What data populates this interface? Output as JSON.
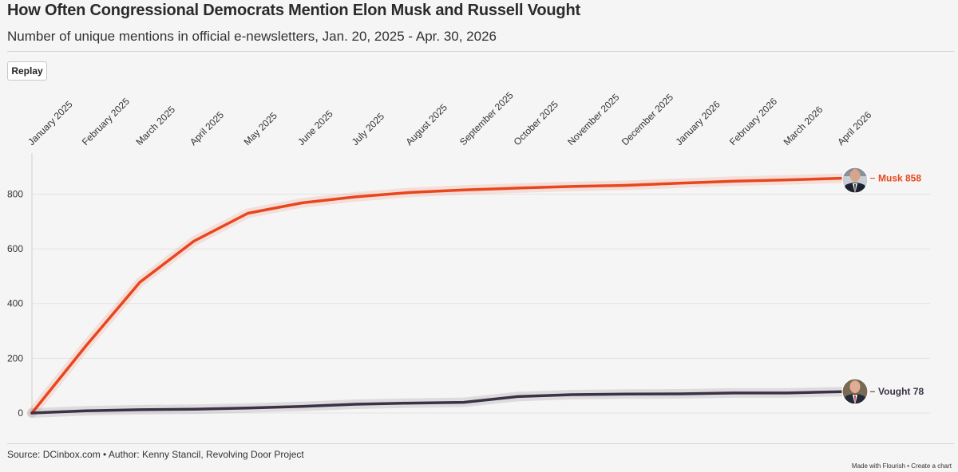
{
  "header": {
    "title": "How Often Congressional Democrats Mention Elon Musk and Russell Vought",
    "subtitle": "Number of unique mentions in official e-newsletters, Jan. 20, 2025 - Apr. 30, 2026"
  },
  "controls": {
    "replay_label": "Replay"
  },
  "footer": {
    "source": "Source: DCinbox.com • Author: Kenny Stancil, Revolving Door Project",
    "made_with": "Made with Flourish",
    "separator": " • ",
    "create_chart": "Create a chart"
  },
  "chart_data": {
    "type": "line",
    "title": "How Often Congressional Democrats Mention Elon Musk and Russell Vought",
    "subtitle": "Number of unique mentions in official e-newsletters, Jan. 20, 2025 - Apr. 30, 2026",
    "xlabel": "",
    "ylabel": "",
    "x": [
      "January 2025",
      "February 2025",
      "March 2025",
      "April 2025",
      "May 2025",
      "June 2025",
      "July 2025",
      "August 2025",
      "September 2025",
      "October 2025",
      "November 2025",
      "December 2025",
      "January 2026",
      "February 2026",
      "March 2026",
      "April 2026"
    ],
    "x_axis_position": "top",
    "ylim": [
      0,
      950
    ],
    "yticks": [
      0,
      200,
      400,
      600,
      800
    ],
    "grid": true,
    "legend": "end-of-line labels",
    "series": [
      {
        "name": "Musk",
        "end_label": "Musk 858",
        "color": "#e8461d",
        "values": [
          0,
          245,
          478,
          628,
          730,
          768,
          790,
          806,
          815,
          822,
          828,
          832,
          840,
          847,
          852,
          858
        ]
      },
      {
        "name": "Vought",
        "end_label": "Vought 78",
        "color": "#3a3245",
        "values": [
          0,
          8,
          12,
          14,
          18,
          24,
          32,
          36,
          39,
          60,
          67,
          69,
          70,
          73,
          73,
          78
        ]
      }
    ]
  }
}
